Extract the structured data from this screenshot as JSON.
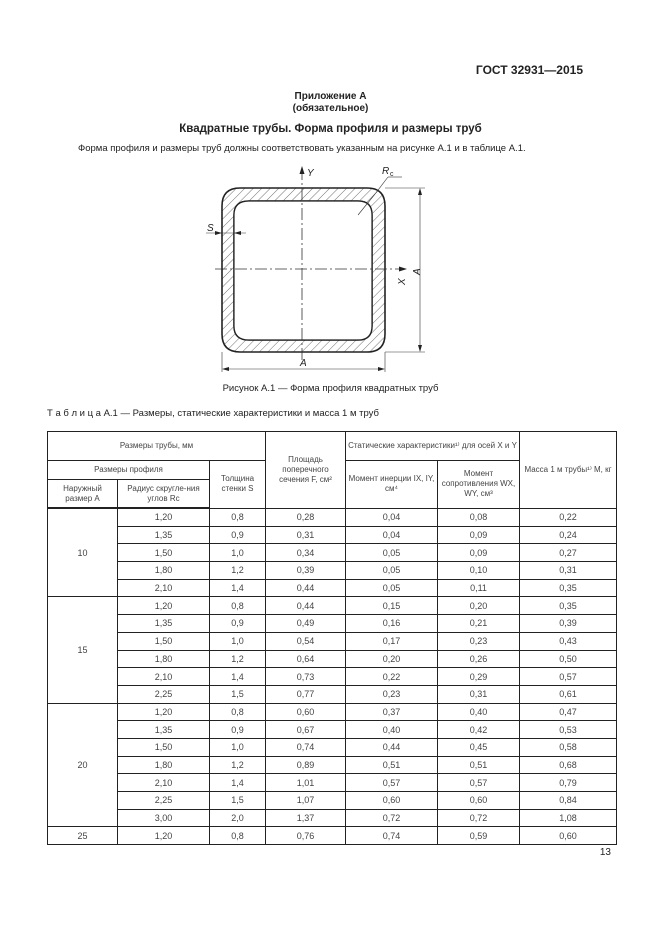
{
  "header": {
    "standard": "ГОСТ 32931—2015"
  },
  "appendix": {
    "title": "Приложение А",
    "status": "(обязательное)"
  },
  "heading": "Квадратные трубы. Форма профиля и размеры труб",
  "intro": "Форма профиля и размеры труб должны соответствовать указанным на рисунке А.1 и в таблице А.1.",
  "figure": {
    "labels": {
      "y": "Y",
      "x": "X",
      "rc": "R",
      "rc_sub": "c",
      "s": "S",
      "a_bottom": "A",
      "a_right": "A"
    },
    "caption": "Рисунок А.1 — Форма профиля квадратных труб"
  },
  "table": {
    "caption": "Т а б л и ц а  А.1 — Размеры, статические характеристики  и масса 1 м труб",
    "headers": {
      "pipe_dims": "Размеры трубы, мм",
      "profile_dims": "Размеры профиля",
      "outer": "Наружный размер A",
      "radius": "Радиус скругле-ния углов Rc",
      "wall": "Толщина стенки S",
      "area": "Площадь поперечного сечения F, см²",
      "static": "Статические характеристики¹⁾ для осей X и Y",
      "inertia": "Момент инерции IX, IY, см⁴",
      "resistance": "Момент сопротивления WX, WY, см³",
      "mass": "Масса 1 м трубы¹⁾ M, кг"
    },
    "groups": [
      {
        "A": "10",
        "rows": [
          [
            "1,20",
            "0,8",
            "0,28",
            "0,04",
            "0,08",
            "0,22"
          ],
          [
            "1,35",
            "0,9",
            "0,31",
            "0,04",
            "0,09",
            "0,24"
          ],
          [
            "1,50",
            "1,0",
            "0,34",
            "0,05",
            "0,09",
            "0,27"
          ],
          [
            "1,80",
            "1,2",
            "0,39",
            "0,05",
            "0,10",
            "0,31"
          ],
          [
            "2,10",
            "1,4",
            "0,44",
            "0,05",
            "0,11",
            "0,35"
          ]
        ]
      },
      {
        "A": "15",
        "rows": [
          [
            "1,20",
            "0,8",
            "0,44",
            "0,15",
            "0,20",
            "0,35"
          ],
          [
            "1,35",
            "0,9",
            "0,49",
            "0,16",
            "0,21",
            "0,39"
          ],
          [
            "1,50",
            "1,0",
            "0,54",
            "0,17",
            "0,23",
            "0,43"
          ],
          [
            "1,80",
            "1,2",
            "0,64",
            "0,20",
            "0,26",
            "0,50"
          ],
          [
            "2,10",
            "1,4",
            "0,73",
            "0,22",
            "0,29",
            "0,57"
          ],
          [
            "2,25",
            "1,5",
            "0,77",
            "0,23",
            "0,31",
            "0,61"
          ]
        ]
      },
      {
        "A": "20",
        "rows": [
          [
            "1,20",
            "0,8",
            "0,60",
            "0,37",
            "0,40",
            "0,47"
          ],
          [
            "1,35",
            "0,9",
            "0,67",
            "0,40",
            "0,42",
            "0,53"
          ],
          [
            "1,50",
            "1,0",
            "0,74",
            "0,44",
            "0,45",
            "0,58"
          ],
          [
            "1,80",
            "1,2",
            "0,89",
            "0,51",
            "0,51",
            "0,68"
          ],
          [
            "2,10",
            "1,4",
            "1,01",
            "0,57",
            "0,57",
            "0,79"
          ],
          [
            "2,25",
            "1,5",
            "1,07",
            "0,60",
            "0,60",
            "0,84"
          ],
          [
            "3,00",
            "2,0",
            "1,37",
            "0,72",
            "0,72",
            "1,08"
          ]
        ]
      },
      {
        "A": "25",
        "rows": [
          [
            "1,20",
            "0,8",
            "0,76",
            "0,74",
            "0,59",
            "0,60"
          ]
        ]
      }
    ]
  },
  "page_number": "13"
}
